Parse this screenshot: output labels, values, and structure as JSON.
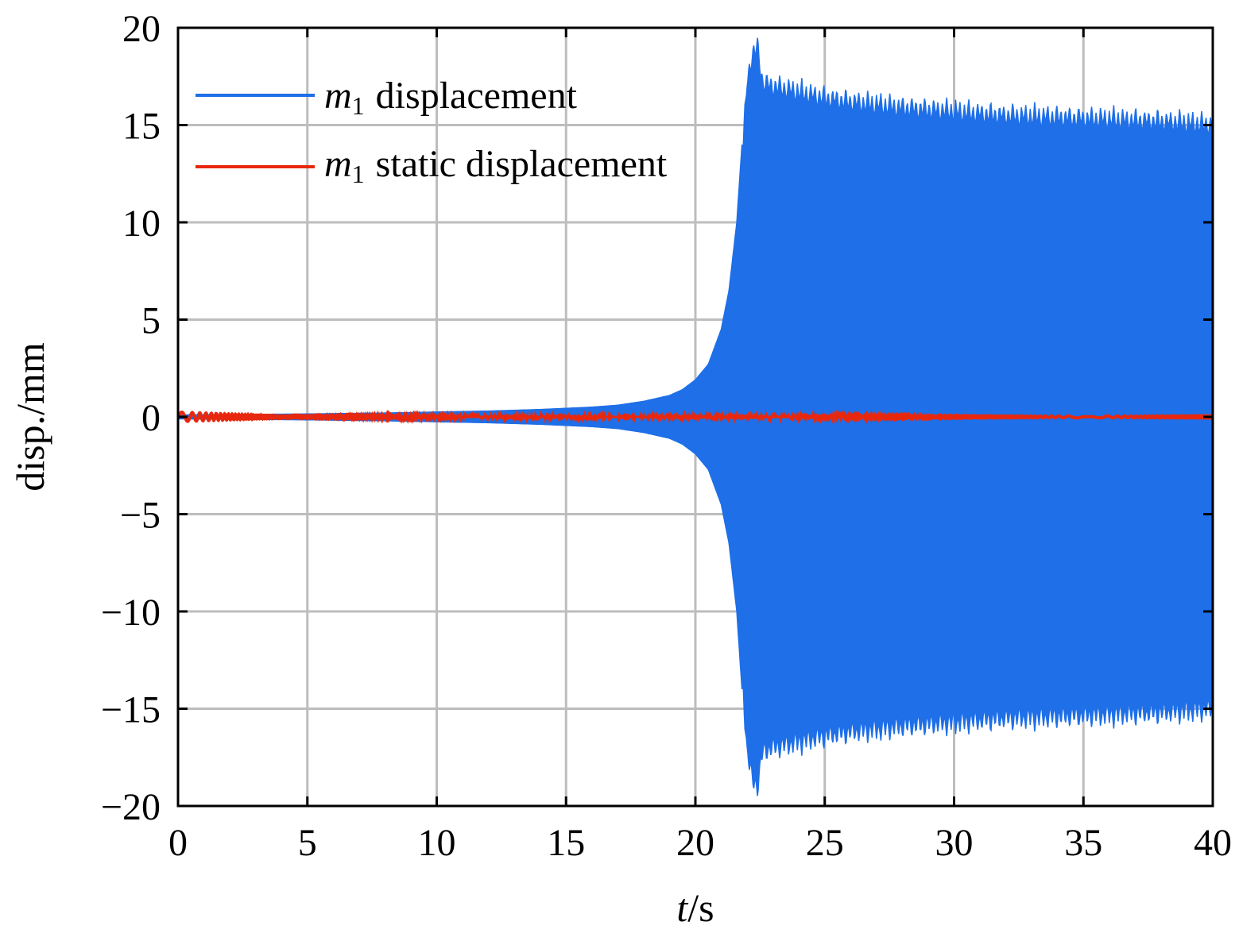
{
  "chart_data": {
    "type": "line",
    "xlabel_var": "t",
    "xlabel_unit": "/s",
    "ylabel": "disp./mm",
    "xlim": [
      0,
      40
    ],
    "ylim": [
      -20,
      20
    ],
    "xticks": [
      0,
      5,
      10,
      15,
      20,
      25,
      30,
      35,
      40
    ],
    "yticks": [
      20,
      15,
      10,
      5,
      0,
      -5,
      -10,
      -15,
      -20
    ],
    "ytick_labels": [
      "20",
      "15",
      "10",
      "5",
      "0",
      "−5",
      "−10",
      "−15",
      "−20"
    ],
    "grid": true,
    "legend_position": "top-left",
    "series": [
      {
        "name_var": "m",
        "name_sub": "1",
        "name_text": "displacement",
        "color": "#1E6FE8",
        "kind": "envelope",
        "envelope_t": [
          0,
          2,
          5,
          8,
          10,
          12,
          14,
          16,
          17,
          18,
          19,
          19.5,
          20,
          20.5,
          21,
          21.3,
          21.6,
          21.8,
          22.0,
          22.2,
          22.4,
          22.6,
          23,
          24,
          25,
          26,
          28,
          30,
          32,
          34,
          36,
          38,
          40
        ],
        "envelope_amp": [
          0.1,
          0.12,
          0.15,
          0.2,
          0.25,
          0.3,
          0.38,
          0.5,
          0.6,
          0.8,
          1.1,
          1.4,
          1.9,
          2.7,
          4.5,
          6.5,
          10,
          14,
          18,
          19.5,
          19.8,
          18,
          17.8,
          17.5,
          17.2,
          17.0,
          16.7,
          16.5,
          16.3,
          16.2,
          16.1,
          16.0,
          15.8
        ]
      },
      {
        "name_var": "m",
        "name_sub": "1",
        "name_text": "static displacement",
        "color": "#E8280E",
        "kind": "damped",
        "amplitude": 0.2,
        "decay_end": 4
      }
    ]
  }
}
